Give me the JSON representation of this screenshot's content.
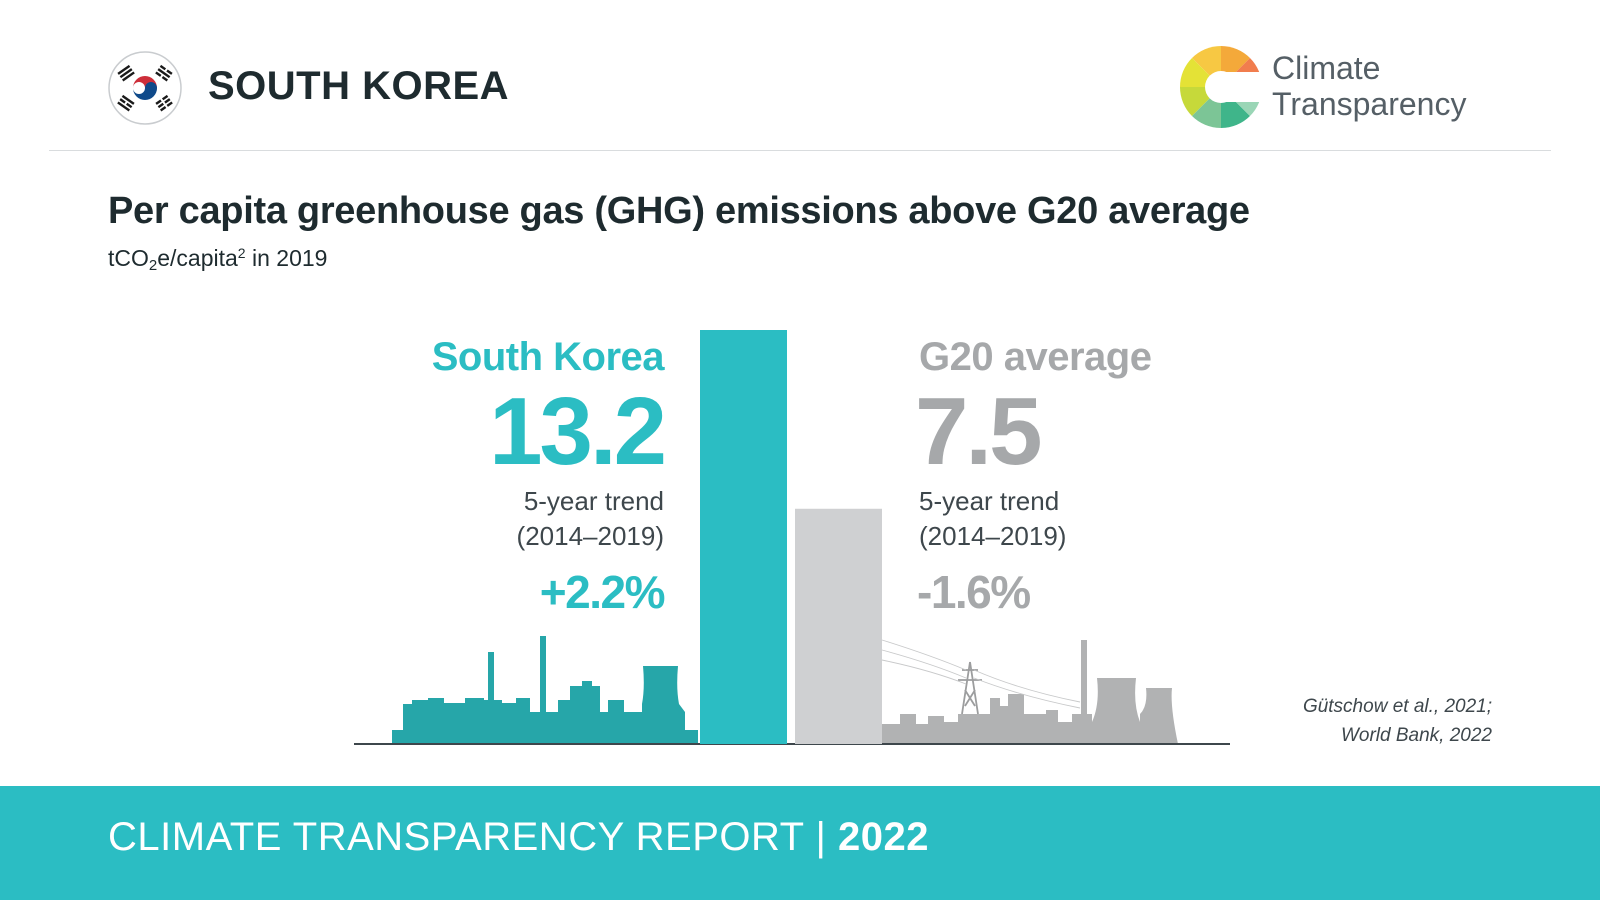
{
  "header": {
    "country": "SOUTH KOREA",
    "logo_text_line1": "Climate",
    "logo_text_line2": "Transparency"
  },
  "title": "Per capita greenhouse gas (GHG) emissions above G20 average",
  "subtitle": {
    "prefix": "tCO",
    "sub": "2",
    "middle": "e/capita",
    "sup": "2",
    "suffix": " in 2019"
  },
  "colors": {
    "country": "#2bbdc3",
    "g20_bar": "#cfd0d2",
    "g20_text": "#a6a8aa",
    "skyline_left": "#26a6a9",
    "skyline_right": "#b1b2b3",
    "footer": "#2bbdc3"
  },
  "chart_data": {
    "type": "bar",
    "categories": [
      "South Korea",
      "G20 average"
    ],
    "values": [
      13.2,
      7.5
    ],
    "value_labels": [
      "13.2",
      "7.5"
    ],
    "trend_label_line1": "5-year trend",
    "trend_label_line2": "(2014–2019)",
    "trends": [
      "+2.2%",
      "-1.6%"
    ],
    "title": "Per capita greenhouse gas (GHG) emissions above G20 average",
    "ylabel": "",
    "ylim": [
      0,
      13.2
    ],
    "grid": false
  },
  "source": {
    "line1": "Gütschow et al., 2021;",
    "line2": "World Bank, 2022"
  },
  "footer": {
    "label": "CLIMATE TRANSPARENCY REPORT | ",
    "year": "2022"
  }
}
